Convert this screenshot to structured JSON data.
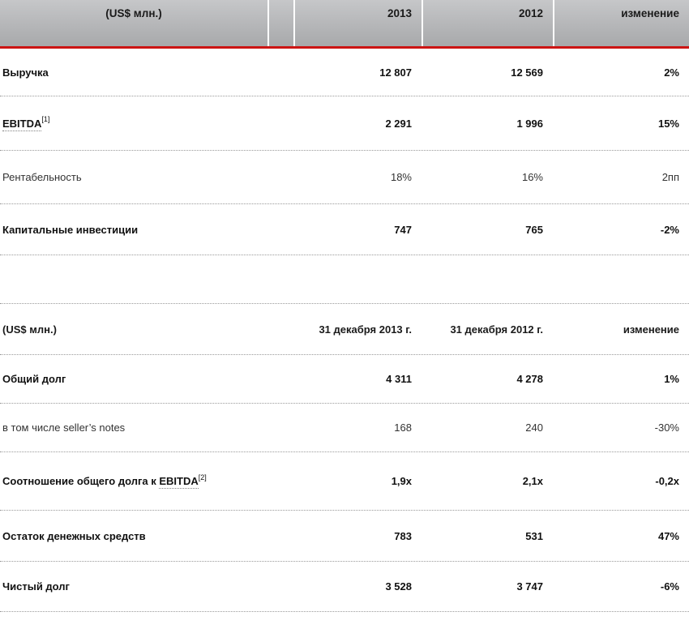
{
  "colors": {
    "accent_red": "#cc1514",
    "header_gradient_top": "#c6c7c9",
    "header_gradient_bottom": "#a8a9ab",
    "separator_dotted": "#9a9a9a"
  },
  "table1": {
    "unit_label": "(US$ млн.)",
    "columns": [
      "2013",
      "2012",
      "изменение"
    ],
    "rows": [
      {
        "label": "Выручка",
        "bold": true,
        "v2013": "12 807",
        "v2012": "12 569",
        "change": "2%"
      },
      {
        "label": "EBITDA",
        "footnote": "[1]",
        "bold": true,
        "v2013": "2 291",
        "v2012": "1 996",
        "change": "15%"
      },
      {
        "label": "Рентабельность",
        "bold": false,
        "v2013": "18%",
        "v2012": "16%",
        "change": "2пп"
      },
      {
        "label": "Капитальные инвестиции",
        "bold": true,
        "v2013": "747",
        "v2012": "765",
        "change": "-2%"
      }
    ]
  },
  "table2": {
    "unit_label": "(US$ млн.)",
    "columns": [
      "31 декабря 2013 г.",
      "31 декабря 2012 г.",
      "изменение"
    ],
    "rows": [
      {
        "label": "Общий долг",
        "bold": true,
        "v1": "4 311",
        "v2": "4 278",
        "change": "1%"
      },
      {
        "label": "в том числе seller’s notes",
        "bold": false,
        "v1": "168",
        "v2": "240",
        "change": "-30%"
      },
      {
        "label_prefix": "Соотношение общего долга к ",
        "link_text": "EBITDA",
        "footnote": "[2]",
        "bold": true,
        "v1": "1,9x",
        "v2": "2,1x",
        "change": "-0,2x"
      },
      {
        "label": "Остаток денежных средств",
        "bold": true,
        "v1": "783",
        "v2": "531",
        "change": "47%"
      },
      {
        "label": "Чистый долг",
        "bold": true,
        "v1": "3 528",
        "v2": "3 747",
        "change": "-6%"
      }
    ]
  }
}
